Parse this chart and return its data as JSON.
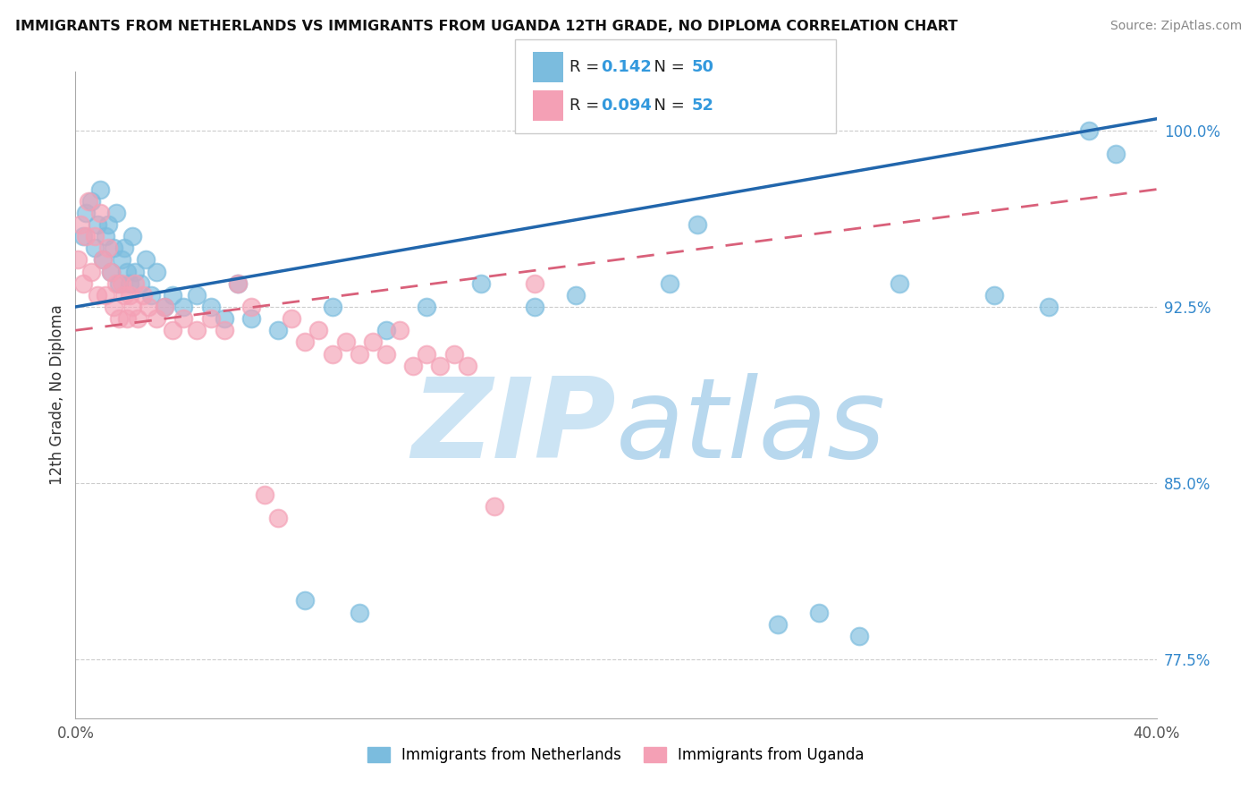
{
  "title": "IMMIGRANTS FROM NETHERLANDS VS IMMIGRANTS FROM UGANDA 12TH GRADE, NO DIPLOMA CORRELATION CHART",
  "source": "Source: ZipAtlas.com",
  "ylabel_label": "12th Grade, No Diploma",
  "legend_label1": "Immigrants from Netherlands",
  "legend_label2": "Immigrants from Uganda",
  "R_netherlands": "0.142",
  "N_netherlands": "50",
  "R_uganda": "0.094",
  "N_uganda": "52",
  "color_netherlands": "#7bbcde",
  "color_uganda": "#f4a0b5",
  "color_trendline_netherlands": "#2166ac",
  "color_trendline_uganda": "#d9607a",
  "watermark_zip_color": "#cce4f4",
  "watermark_atlas_color": "#b8d8ee",
  "x_min": 0.0,
  "x_max": 40.0,
  "y_min": 75.0,
  "y_max": 102.5,
  "yticks": [
    77.5,
    85.0,
    92.5,
    100.0
  ],
  "ytick_labels": [
    "77.5%",
    "85.0%",
    "92.5%",
    "100.0%"
  ],
  "nl_x": [
    0.3,
    0.4,
    0.6,
    0.7,
    0.8,
    0.9,
    1.0,
    1.1,
    1.2,
    1.3,
    1.4,
    1.5,
    1.6,
    1.7,
    1.8,
    1.9,
    2.0,
    2.1,
    2.2,
    2.4,
    2.6,
    2.8,
    3.0,
    3.3,
    3.6,
    4.0,
    4.5,
    5.0,
    5.5,
    6.0,
    6.5,
    7.5,
    8.5,
    9.5,
    10.5,
    11.5,
    13.0,
    15.0,
    17.0,
    18.5,
    22.0,
    23.0,
    26.0,
    27.5,
    29.0,
    30.5,
    34.0,
    36.0,
    37.5,
    38.5
  ],
  "nl_y": [
    95.5,
    96.5,
    97.0,
    95.0,
    96.0,
    97.5,
    94.5,
    95.5,
    96.0,
    94.0,
    95.0,
    96.5,
    93.5,
    94.5,
    95.0,
    94.0,
    93.5,
    95.5,
    94.0,
    93.5,
    94.5,
    93.0,
    94.0,
    92.5,
    93.0,
    92.5,
    93.0,
    92.5,
    92.0,
    93.5,
    92.0,
    91.5,
    80.0,
    92.5,
    79.5,
    91.5,
    92.5,
    93.5,
    92.5,
    93.0,
    93.5,
    96.0,
    79.0,
    79.5,
    78.5,
    93.5,
    93.0,
    92.5,
    100.0,
    99.0
  ],
  "ug_x": [
    0.1,
    0.2,
    0.3,
    0.4,
    0.5,
    0.6,
    0.7,
    0.8,
    0.9,
    1.0,
    1.1,
    1.2,
    1.3,
    1.4,
    1.5,
    1.6,
    1.7,
    1.8,
    1.9,
    2.0,
    2.1,
    2.2,
    2.3,
    2.5,
    2.7,
    3.0,
    3.3,
    3.6,
    4.0,
    4.5,
    5.0,
    5.5,
    6.0,
    6.5,
    7.0,
    7.5,
    8.0,
    8.5,
    9.0,
    9.5,
    10.0,
    10.5,
    11.0,
    11.5,
    12.0,
    12.5,
    13.0,
    13.5,
    14.0,
    14.5,
    15.5,
    17.0
  ],
  "ug_y": [
    94.5,
    96.0,
    93.5,
    95.5,
    97.0,
    94.0,
    95.5,
    93.0,
    96.5,
    94.5,
    93.0,
    95.0,
    94.0,
    92.5,
    93.5,
    92.0,
    93.5,
    93.0,
    92.0,
    93.0,
    92.5,
    93.5,
    92.0,
    93.0,
    92.5,
    92.0,
    92.5,
    91.5,
    92.0,
    91.5,
    92.0,
    91.5,
    93.5,
    92.5,
    84.5,
    83.5,
    92.0,
    91.0,
    91.5,
    90.5,
    91.0,
    90.5,
    91.0,
    90.5,
    91.5,
    90.0,
    90.5,
    90.0,
    90.5,
    90.0,
    84.0,
    93.5
  ],
  "trendline_nl_x0": 0.0,
  "trendline_nl_x1": 40.0,
  "trendline_nl_y0": 92.5,
  "trendline_nl_y1": 100.5,
  "trendline_ug_x0": 0.0,
  "trendline_ug_x1": 40.0,
  "trendline_ug_y0": 91.5,
  "trendline_ug_y1": 97.5
}
